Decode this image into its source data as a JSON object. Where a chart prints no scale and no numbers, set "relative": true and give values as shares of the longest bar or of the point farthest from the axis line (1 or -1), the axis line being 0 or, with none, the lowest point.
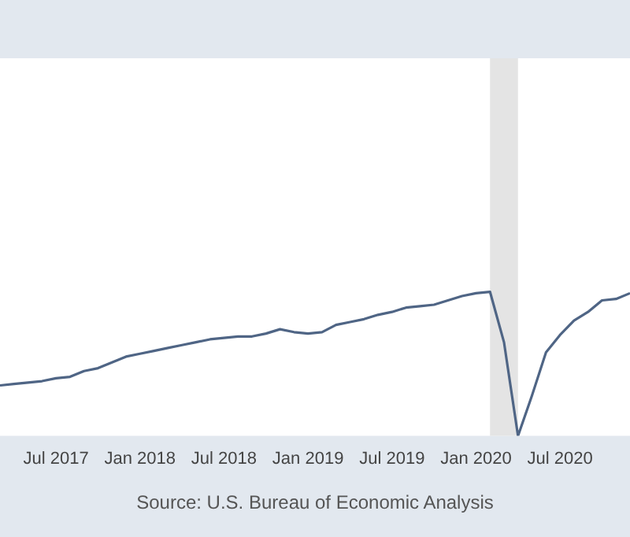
{
  "chart_data": {
    "type": "line",
    "relative": true,
    "x": [
      "2017-03",
      "2017-04",
      "2017-05",
      "2017-06",
      "2017-07",
      "2017-08",
      "2017-09",
      "2017-10",
      "2017-11",
      "2017-12",
      "2018-01",
      "2018-02",
      "2018-03",
      "2018-04",
      "2018-05",
      "2018-06",
      "2018-07",
      "2018-08",
      "2018-09",
      "2018-10",
      "2018-11",
      "2018-12",
      "2019-01",
      "2019-02",
      "2019-03",
      "2019-04",
      "2019-05",
      "2019-06",
      "2019-07",
      "2019-08",
      "2019-09",
      "2019-10",
      "2019-11",
      "2019-12",
      "2020-01",
      "2020-02",
      "2020-03",
      "2020-04",
      "2020-05",
      "2020-06",
      "2020-07",
      "2020-08",
      "2020-09",
      "2020-10",
      "2020-11",
      "2020-12"
    ],
    "series": [
      {
        "color": "#4f6585",
        "values": [
          0.35,
          0.36,
          0.37,
          0.38,
          0.4,
          0.41,
          0.45,
          0.47,
          0.51,
          0.55,
          0.57,
          0.59,
          0.61,
          0.63,
          0.65,
          0.67,
          0.68,
          0.69,
          0.69,
          0.71,
          0.74,
          0.72,
          0.71,
          0.72,
          0.77,
          0.79,
          0.81,
          0.84,
          0.86,
          0.89,
          0.9,
          0.91,
          0.94,
          0.97,
          0.99,
          1,
          0.65,
          0,
          0.28,
          0.58,
          0.7,
          0.8,
          0.86,
          0.94,
          0.95,
          0.99
        ]
      }
    ],
    "xlim": [
      "2017-03",
      "2020-12"
    ],
    "xticks": [
      {
        "value": "2017-07",
        "label": "Jul 2017"
      },
      {
        "value": "2018-01",
        "label": "Jan 2018"
      },
      {
        "value": "2018-07",
        "label": "Jul 2018"
      },
      {
        "value": "2019-01",
        "label": "Jan 2019"
      },
      {
        "value": "2019-07",
        "label": "Jul 2019"
      },
      {
        "value": "2020-01",
        "label": "Jan 2020"
      },
      {
        "value": "2020-07",
        "label": "Jul 2020"
      }
    ],
    "bands": [
      {
        "axis": "x",
        "from": "2020-02",
        "to": "2020-04",
        "color": "#e4e4e4"
      }
    ],
    "legend": false,
    "marker": "none",
    "line_style": "solid",
    "annotations": [
      "Source: U.S. Bureau of Economic Analysis"
    ]
  }
}
